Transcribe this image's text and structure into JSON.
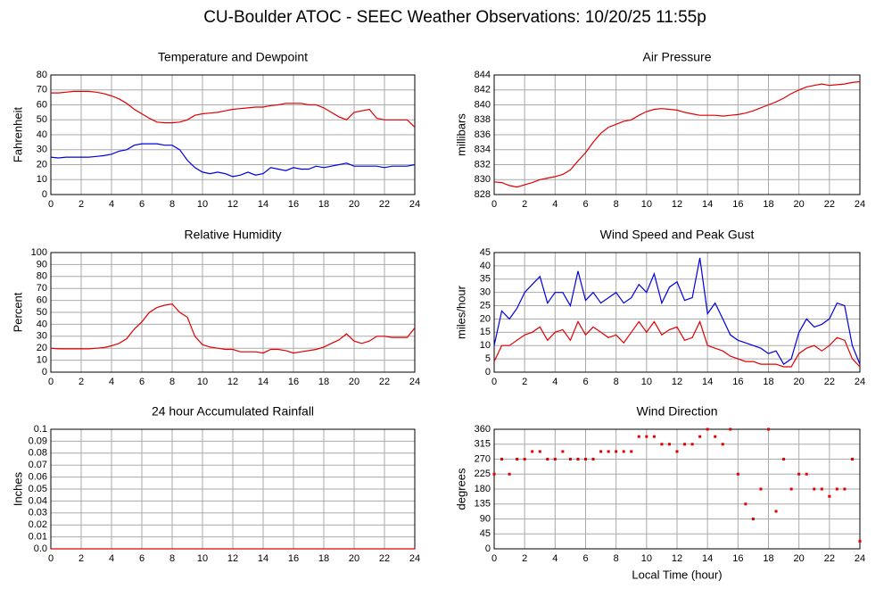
{
  "title": "CU-Boulder ATOC - SEEC Weather Observations: 10/20/25 11:55p",
  "chart_data": [
    {
      "type": "line",
      "title": "Temperature and Dewpoint",
      "y_label": "Fahrenheit",
      "x": [
        0,
        0.5,
        1,
        1.5,
        2,
        2.5,
        3,
        3.5,
        4,
        4.5,
        5,
        5.5,
        6,
        6.5,
        7,
        7.5,
        8,
        8.5,
        9,
        9.5,
        10,
        10.5,
        11,
        11.5,
        12,
        12.5,
        13,
        13.5,
        14,
        14.5,
        15,
        15.5,
        16,
        16.5,
        17,
        17.5,
        18,
        18.5,
        19,
        19.5,
        20,
        20.5,
        21,
        21.5,
        22,
        22.5,
        23,
        23.5,
        24
      ],
      "series": [
        {
          "color": "#e00000",
          "values": [
            68,
            68,
            68.5,
            69,
            69,
            69,
            68.5,
            67.5,
            66,
            64,
            61,
            57,
            54,
            51,
            48.5,
            48,
            48,
            48.5,
            50,
            53,
            54,
            54.5,
            55,
            56,
            57,
            57.5,
            58,
            58.5,
            58.5,
            59.5,
            60,
            61,
            61,
            61,
            60,
            60,
            58,
            55,
            52,
            50,
            55,
            56,
            57,
            51,
            50,
            50,
            50,
            50,
            45
          ]
        },
        {
          "color": "#0000e0",
          "values": [
            25,
            24.5,
            25,
            25,
            25,
            25,
            25.5,
            26,
            27,
            29,
            30,
            33,
            34,
            34,
            34,
            33,
            33,
            30,
            23,
            18,
            15,
            14,
            15,
            14,
            12,
            13,
            15,
            13,
            14,
            18,
            17,
            16,
            18,
            17,
            17,
            19,
            18,
            19,
            20,
            21,
            19,
            19,
            19,
            19,
            18,
            19,
            19,
            19,
            20
          ]
        }
      ],
      "xlim": [
        0,
        24
      ],
      "xticks": [
        0,
        2,
        4,
        6,
        8,
        10,
        12,
        14,
        16,
        18,
        20,
        22,
        24
      ],
      "ylim": [
        0,
        80
      ],
      "yticks": [
        0,
        10,
        20,
        30,
        40,
        50,
        60,
        70,
        80
      ],
      "grid": true
    },
    {
      "type": "line",
      "title": "Air Pressure",
      "y_label": "millibars",
      "x": [
        0,
        0.5,
        1,
        1.5,
        2,
        2.5,
        3,
        3.5,
        4,
        4.5,
        5,
        5.5,
        6,
        6.5,
        7,
        7.5,
        8,
        8.5,
        9,
        9.5,
        10,
        10.5,
        11,
        11.5,
        12,
        12.5,
        13,
        13.5,
        14,
        14.5,
        15,
        15.5,
        16,
        16.5,
        17,
        17.5,
        18,
        18.5,
        19,
        19.5,
        20,
        20.5,
        21,
        21.5,
        22,
        22.5,
        23,
        23.5,
        24
      ],
      "series": [
        {
          "color": "#e00000",
          "values": [
            829.7,
            829.6,
            829.2,
            829.0,
            829.3,
            829.6,
            830,
            830.2,
            830.4,
            830.7,
            831.3,
            832.5,
            833.6,
            835,
            836.2,
            837,
            837.4,
            837.8,
            838,
            838.6,
            839.1,
            839.4,
            839.5,
            839.4,
            839.3,
            839,
            838.8,
            838.6,
            838.6,
            838.6,
            838.5,
            838.6,
            838.7,
            838.9,
            839.2,
            839.6,
            840,
            840.4,
            840.9,
            841.5,
            842,
            842.4,
            842.6,
            842.8,
            842.6,
            842.7,
            842.8,
            843,
            843.1
          ]
        }
      ],
      "xlim": [
        0,
        24
      ],
      "xticks": [
        0,
        2,
        4,
        6,
        8,
        10,
        12,
        14,
        16,
        18,
        20,
        22,
        24
      ],
      "ylim": [
        828,
        844
      ],
      "yticks": [
        828,
        830,
        832,
        834,
        836,
        838,
        840,
        842,
        844
      ],
      "grid": true
    },
    {
      "type": "line",
      "title": "Relative Humidity",
      "y_label": "Percent",
      "x": [
        0,
        0.5,
        1,
        1.5,
        2,
        2.5,
        3,
        3.5,
        4,
        4.5,
        5,
        5.5,
        6,
        6.5,
        7,
        7.5,
        8,
        8.5,
        9,
        9.5,
        10,
        10.5,
        11,
        11.5,
        12,
        12.5,
        13,
        13.5,
        14,
        14.5,
        15,
        15.5,
        16,
        16.5,
        17,
        17.5,
        18,
        18.5,
        19,
        19.5,
        20,
        20.5,
        21,
        21.5,
        22,
        22.5,
        23,
        23.5,
        24
      ],
      "series": [
        {
          "color": "#e00000",
          "values": [
            20,
            19.5,
            19.5,
            19.5,
            19.5,
            19.5,
            20,
            20.5,
            22,
            24,
            28,
            36,
            42,
            50,
            54,
            56,
            57,
            50,
            46,
            30,
            23,
            21,
            20,
            19,
            19,
            17,
            17,
            17,
            16,
            19,
            19,
            18,
            16,
            17,
            18,
            19,
            21,
            24,
            27,
            32,
            26,
            24,
            26,
            30,
            30,
            29,
            29,
            29,
            37
          ]
        }
      ],
      "xlim": [
        0,
        24
      ],
      "xticks": [
        0,
        2,
        4,
        6,
        8,
        10,
        12,
        14,
        16,
        18,
        20,
        22,
        24
      ],
      "ylim": [
        0,
        100
      ],
      "yticks": [
        0,
        10,
        20,
        30,
        40,
        50,
        60,
        70,
        80,
        90,
        100
      ],
      "grid": true
    },
    {
      "type": "line",
      "title": "Wind Speed and Peak Gust",
      "y_label": "miles/hour",
      "x": [
        0,
        0.5,
        1,
        1.5,
        2,
        2.5,
        3,
        3.5,
        4,
        4.5,
        5,
        5.5,
        6,
        6.5,
        7,
        7.5,
        8,
        8.5,
        9,
        9.5,
        10,
        10.5,
        11,
        11.5,
        12,
        12.5,
        13,
        13.5,
        14,
        14.5,
        15,
        15.5,
        16,
        16.5,
        17,
        17.5,
        18,
        18.5,
        19,
        19.5,
        20,
        20.5,
        21,
        21.5,
        22,
        22.5,
        23,
        23.5,
        24
      ],
      "series": [
        {
          "color": "#0000e0",
          "values": [
            10,
            23,
            20,
            24,
            30,
            33,
            36,
            26,
            30,
            30,
            25,
            38,
            27,
            30,
            26,
            28,
            30,
            26,
            28,
            33,
            30,
            37,
            26,
            32,
            34,
            27,
            28,
            43,
            22,
            26,
            20,
            14,
            12,
            11,
            10,
            9,
            7,
            8,
            3,
            5,
            15,
            20,
            17,
            18,
            20,
            26,
            25,
            10,
            3
          ]
        },
        {
          "color": "#e00000",
          "values": [
            4,
            10,
            10,
            12,
            14,
            15,
            17,
            12,
            15,
            16,
            12,
            19,
            14,
            17,
            15,
            13,
            14,
            11,
            15,
            19,
            15,
            19,
            14,
            16,
            17,
            12,
            13,
            19,
            10,
            9,
            8,
            6,
            5,
            4,
            4,
            3,
            3,
            3,
            2,
            2,
            7,
            9,
            10,
            8,
            10,
            13,
            12,
            5,
            2
          ]
        }
      ],
      "xlim": [
        0,
        24
      ],
      "xticks": [
        0,
        2,
        4,
        6,
        8,
        10,
        12,
        14,
        16,
        18,
        20,
        22,
        24
      ],
      "ylim": [
        0,
        45
      ],
      "yticks": [
        0,
        5,
        10,
        15,
        20,
        25,
        30,
        35,
        40,
        45
      ],
      "grid": true
    },
    {
      "type": "line",
      "title": "24 hour Accumulated Rainfall",
      "y_label": "Inches",
      "x": [
        0,
        24
      ],
      "series": [
        {
          "color": "#e00000",
          "values": [
            0,
            0
          ]
        }
      ],
      "xlim": [
        0,
        24
      ],
      "xticks": [
        0,
        2,
        4,
        6,
        8,
        10,
        12,
        14,
        16,
        18,
        20,
        22,
        24
      ],
      "ylim": [
        0,
        0.1
      ],
      "yticks": [
        {
          "value": 0,
          "label": "0.0"
        },
        0.01,
        0.02,
        0.03,
        0.04,
        0.05,
        0.06,
        0.07,
        0.08,
        0.09,
        0.1
      ],
      "grid": true
    },
    {
      "type": "scatter",
      "title": "Wind Direction",
      "y_label": "degrees",
      "x_label": "Local Time (hour)",
      "x": [
        0,
        0.5,
        1,
        1.5,
        2,
        2.5,
        3,
        3.5,
        4,
        4.5,
        5,
        5.5,
        6,
        6.5,
        7,
        7.5,
        8,
        8.5,
        9,
        9.5,
        10,
        10.5,
        11,
        11.5,
        12,
        12.5,
        13,
        13.5,
        14,
        14.5,
        15,
        15.5,
        16,
        16.5,
        17,
        17.5,
        18,
        18.5,
        19,
        19.5,
        20,
        20.5,
        21,
        21.5,
        22,
        22.5,
        23,
        23.5,
        24
      ],
      "series": [
        {
          "color": "#e00000",
          "values": [
            225,
            270,
            225,
            270,
            270,
            293,
            293,
            270,
            270,
            293,
            270,
            270,
            270,
            270,
            293,
            293,
            293,
            293,
            293,
            338,
            338,
            338,
            315,
            315,
            293,
            315,
            315,
            338,
            360,
            338,
            315,
            360,
            225,
            135,
            90,
            180,
            360,
            113,
            270,
            180,
            225,
            225,
            180,
            180,
            158,
            180,
            180,
            270,
            23
          ]
        }
      ],
      "xlim": [
        0,
        24
      ],
      "xticks": [
        0,
        2,
        4,
        6,
        8,
        10,
        12,
        14,
        16,
        18,
        20,
        22,
        24
      ],
      "ylim": [
        0,
        360
      ],
      "yticks": [
        0,
        45,
        90,
        135,
        180,
        225,
        270,
        315,
        360
      ],
      "grid": true
    }
  ]
}
